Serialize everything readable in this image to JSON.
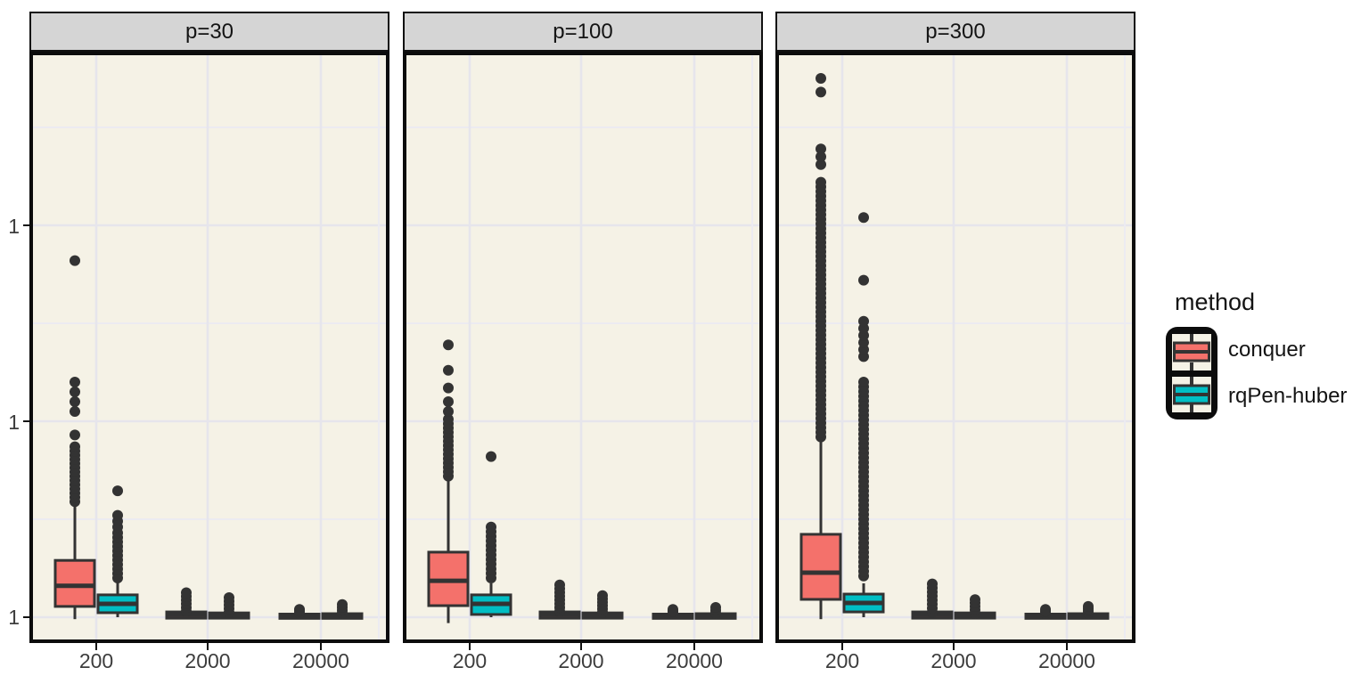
{
  "figure": {
    "panel_bg": "#F5F2E6",
    "strip_bg": "#D5D5D5",
    "grid_major": "#E6E5EC",
    "grid_minor": "#ECEBF1",
    "stroke": "#333333",
    "outlier_color": "#333333"
  },
  "axes": {
    "x_tick_labels": [
      "200",
      "2000",
      "20000"
    ],
    "y_tick_labels": [
      "1",
      "1",
      "1"
    ]
  },
  "legend": {
    "title": "method",
    "entries": [
      {
        "label": "conquer",
        "color": "#F4716B"
      },
      {
        "label": "rqPen-huber",
        "color": "#00BEC4"
      }
    ]
  },
  "chart_data": {
    "type": "boxplot",
    "note": "Faceted dodged boxplots; y is a log-style axis whose three labeled major gridlines all read '1'. Values below are in units of major-gridline steps above the bottom '1' baseline; x groups are sample sizes 200/2000/20000.",
    "x_categories": [
      "200",
      "2000",
      "20000"
    ],
    "methods": [
      "conquer",
      "rqPen-huber"
    ],
    "colors": {
      "conquer": "#F4716B",
      "rqPen-huber": "#00BEC4"
    },
    "y_tick_labels": [
      "1",
      "1",
      "1"
    ],
    "facets": [
      {
        "label": "p=30",
        "boxes": [
          {
            "x": "200",
            "method": "conquer",
            "lo": -0.01,
            "q1": 0.055,
            "med": 0.16,
            "q3": 0.29,
            "hi": 0.6,
            "outlier_points": [
              1.82,
              1.2,
              1.15,
              1.1,
              1.05,
              0.93
            ],
            "outlier_runs": [
              [
                0.59,
                0.87,
                14
              ]
            ]
          },
          {
            "x": "200",
            "method": "rqPen-huber",
            "lo": 0,
            "q1": 0.023,
            "med": 0.068,
            "q3": 0.114,
            "hi": 0.195,
            "outlier_points": [
              0.645
            ],
            "outlier_runs": [
              [
                0.2,
                0.43,
                11
              ],
              [
                0.46,
                0.52,
                3
              ]
            ]
          },
          {
            "x": "2000",
            "method": "conquer",
            "lo": 0,
            "q1": -0.005,
            "med": 0.012,
            "q3": 0.027,
            "hi": 0.04,
            "outlier_points": [],
            "outlier_runs": [
              [
                0.03,
                0.125,
                6
              ]
            ]
          },
          {
            "x": "2000",
            "method": "rqPen-huber",
            "lo": 0,
            "q1": -0.005,
            "med": 0.01,
            "q3": 0.022,
            "hi": 0.032,
            "outlier_points": [],
            "outlier_runs": [
              [
                0.025,
                0.1,
                5
              ]
            ]
          },
          {
            "x": "20000",
            "method": "conquer",
            "lo": 0,
            "q1": -0.006,
            "med": 0.005,
            "q3": 0.016,
            "hi": 0.024,
            "outlier_points": [
              0.035
            ],
            "outlier_runs": [
              [
                0.02,
                0.04,
                3
              ]
            ]
          },
          {
            "x": "20000",
            "method": "rqPen-huber",
            "lo": 0,
            "q1": -0.006,
            "med": 0.006,
            "q3": 0.018,
            "hi": 0.026,
            "outlier_points": [],
            "outlier_runs": [
              [
                0.02,
                0.065,
                4
              ]
            ]
          }
        ]
      },
      {
        "label": "p=100",
        "boxes": [
          {
            "x": "200",
            "method": "conquer",
            "lo": -0.03,
            "q1": 0.059,
            "med": 0.186,
            "q3": 0.332,
            "hi": 0.71,
            "outlier_points": [
              1.39,
              1.26,
              1.17,
              1.1,
              1.05
            ],
            "outlier_runs": [
              [
                0.72,
                1.01,
                14
              ]
            ]
          },
          {
            "x": "200",
            "method": "rqPen-huber",
            "lo": 0,
            "q1": 0.014,
            "med": 0.068,
            "q3": 0.114,
            "hi": 0.173,
            "outlier_points": [
              0.82
            ],
            "outlier_runs": [
              [
                0.2,
                0.46,
                12
              ]
            ]
          },
          {
            "x": "2000",
            "method": "conquer",
            "lo": 0,
            "q1": -0.005,
            "med": 0.012,
            "q3": 0.027,
            "hi": 0.04,
            "outlier_points": [],
            "outlier_runs": [
              [
                0.03,
                0.165,
                8
              ]
            ]
          },
          {
            "x": "2000",
            "method": "rqPen-huber",
            "lo": 0,
            "q1": -0.005,
            "med": 0.01,
            "q3": 0.022,
            "hi": 0.03,
            "outlier_points": [],
            "outlier_runs": [
              [
                0.025,
                0.11,
                6
              ]
            ]
          },
          {
            "x": "20000",
            "method": "conquer",
            "lo": 0,
            "q1": -0.006,
            "med": 0.005,
            "q3": 0.016,
            "hi": 0.022,
            "outlier_points": [
              0.03
            ],
            "outlier_runs": [
              [
                0.018,
                0.04,
                3
              ]
            ]
          },
          {
            "x": "20000",
            "method": "rqPen-huber",
            "lo": 0,
            "q1": -0.006,
            "med": 0.006,
            "q3": 0.018,
            "hi": 0.026,
            "outlier_points": [],
            "outlier_runs": [
              [
                0.02,
                0.05,
                3
              ]
            ]
          }
        ]
      },
      {
        "label": "p=300",
        "boxes": [
          {
            "x": "200",
            "method": "conquer",
            "lo": -0.01,
            "q1": 0.091,
            "med": 0.227,
            "q3": 0.423,
            "hi": 0.9,
            "outlier_points": [
              2.75,
              2.68
            ],
            "outlier_runs": [
              [
                0.92,
                2.22,
                56
              ],
              [
                2.31,
                2.39,
                3
              ]
            ]
          },
          {
            "x": "200",
            "method": "rqPen-huber",
            "lo": 0,
            "q1": 0.027,
            "med": 0.073,
            "q3": 0.118,
            "hi": 0.173,
            "outlier_points": [
              2.04,
              1.72
            ],
            "outlier_runs": [
              [
                0.21,
                1.2,
                42
              ],
              [
                1.33,
                1.51,
                6
              ]
            ]
          },
          {
            "x": "2000",
            "method": "conquer",
            "lo": 0,
            "q1": -0.005,
            "med": 0.012,
            "q3": 0.027,
            "hi": 0.04,
            "outlier_points": [],
            "outlier_runs": [
              [
                0.025,
                0.17,
                8
              ]
            ]
          },
          {
            "x": "2000",
            "method": "rqPen-huber",
            "lo": 0,
            "q1": -0.005,
            "med": 0.01,
            "q3": 0.022,
            "hi": 0.03,
            "outlier_points": [],
            "outlier_runs": [
              [
                0.02,
                0.09,
                5
              ]
            ]
          },
          {
            "x": "20000",
            "method": "conquer",
            "lo": 0,
            "q1": -0.006,
            "med": 0.005,
            "q3": 0.016,
            "hi": 0.022,
            "outlier_points": [
              0.03
            ],
            "outlier_runs": [
              [
                0.018,
                0.04,
                3
              ]
            ]
          },
          {
            "x": "20000",
            "method": "rqPen-huber",
            "lo": 0,
            "q1": -0.006,
            "med": 0.006,
            "q3": 0.018,
            "hi": 0.026,
            "outlier_points": [],
            "outlier_runs": [
              [
                0.02,
                0.055,
                4
              ]
            ]
          }
        ]
      }
    ]
  }
}
